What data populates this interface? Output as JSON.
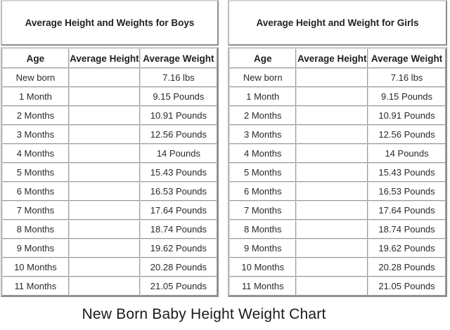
{
  "boys": {
    "title": "Average Height and Weights for Boys",
    "headers": [
      "Age",
      "Average Height",
      "Average Weight"
    ],
    "rows": [
      {
        "age": "New born",
        "height": "",
        "weight": "7.16 lbs"
      },
      {
        "age": "1 Month",
        "height": "",
        "weight": "9.15 Pounds"
      },
      {
        "age": "2 Months",
        "height": "",
        "weight": "10.91 Pounds"
      },
      {
        "age": "3 Months",
        "height": "",
        "weight": "12.56 Pounds"
      },
      {
        "age": "4 Months",
        "height": "",
        "weight": "14 Pounds"
      },
      {
        "age": "5 Months",
        "height": "",
        "weight": "15.43 Pounds"
      },
      {
        "age": "6 Months",
        "height": "",
        "weight": "16.53 Pounds"
      },
      {
        "age": "7 Months",
        "height": "",
        "weight": "17.64 Pounds"
      },
      {
        "age": "8 Months",
        "height": "",
        "weight": "18.74 Pounds"
      },
      {
        "age": "9 Months",
        "height": "",
        "weight": "19.62 Pounds"
      },
      {
        "age": "10 Months",
        "height": "",
        "weight": "20.28 Pounds"
      },
      {
        "age": "11 Months",
        "height": "",
        "weight": "21.05 Pounds"
      }
    ]
  },
  "girls": {
    "title": "Average Height and Weight for Girls",
    "headers": [
      "Age",
      "Average Height",
      "Average Weight"
    ],
    "rows": [
      {
        "age": "New born",
        "height": "",
        "weight": "7.16 lbs"
      },
      {
        "age": "1 Month",
        "height": "",
        "weight": "9.15 Pounds"
      },
      {
        "age": "2 Months",
        "height": "",
        "weight": "10.91 Pounds"
      },
      {
        "age": "3 Months",
        "height": "",
        "weight": "12.56 Pounds"
      },
      {
        "age": "4 Months",
        "height": "",
        "weight": "14 Pounds"
      },
      {
        "age": "5 Months",
        "height": "",
        "weight": "15.43 Pounds"
      },
      {
        "age": "6 Months",
        "height": "",
        "weight": "16.53 Pounds"
      },
      {
        "age": "7 Months",
        "height": "",
        "weight": "17.64 Pounds"
      },
      {
        "age": "8 Months",
        "height": "",
        "weight": "18.74 Pounds"
      },
      {
        "age": "9 Months",
        "height": "",
        "weight": "19.62 Pounds"
      },
      {
        "age": "10 Months",
        "height": "",
        "weight": "20.28 Pounds"
      },
      {
        "age": "11 Months",
        "height": "",
        "weight": "21.05 Pounds"
      }
    ]
  },
  "caption": "New Born Baby Height Weight Chart"
}
